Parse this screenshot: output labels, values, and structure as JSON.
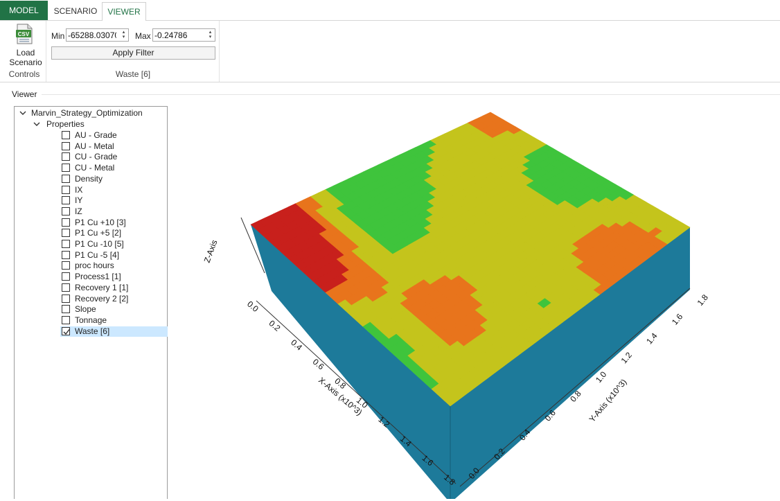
{
  "tabs": [
    {
      "label": "MODEL"
    },
    {
      "label": "SCENARIO"
    },
    {
      "label": "VIEWER"
    }
  ],
  "ribbon": {
    "controls_group": {
      "caption": "Controls",
      "load_button_label": "Load\nScenario",
      "icon": "csv-file-icon"
    },
    "filter_group": {
      "caption": "Waste [6]",
      "min_label": "Min",
      "min_value": "-65288.03070",
      "max_label": "Max",
      "max_value": "-0.24786",
      "apply_label": "Apply Filter"
    }
  },
  "viewer": {
    "label": "Viewer",
    "tree": {
      "root": "Marvin_Strategy_Optimization",
      "group": "Properties",
      "items": [
        {
          "label": "AU - Grade",
          "checked": false
        },
        {
          "label": "AU - Metal",
          "checked": false
        },
        {
          "label": "CU - Grade",
          "checked": false
        },
        {
          "label": "CU - Metal",
          "checked": false
        },
        {
          "label": "Density",
          "checked": false
        },
        {
          "label": "IX",
          "checked": false
        },
        {
          "label": "IY",
          "checked": false
        },
        {
          "label": "IZ",
          "checked": false
        },
        {
          "label": "P1 Cu +10 [3]",
          "checked": false
        },
        {
          "label": "P1 Cu +5 [2]",
          "checked": false
        },
        {
          "label": "P1 Cu -10 [5]",
          "checked": false
        },
        {
          "label": "P1 Cu -5 [4]",
          "checked": false
        },
        {
          "label": "proc hours",
          "checked": false
        },
        {
          "label": "Process1 [1]",
          "checked": false
        },
        {
          "label": "Recovery 1 [1]",
          "checked": false
        },
        {
          "label": "Recovery 2 [2]",
          "checked": false
        },
        {
          "label": "Slope",
          "checked": false
        },
        {
          "label": "Tonnage",
          "checked": false
        },
        {
          "label": "Waste [6]",
          "checked": true
        }
      ]
    },
    "plot": {
      "z_axis_label": "Z-Axis",
      "x_axis_label": "X-Axis (x10^3)",
      "y_axis_label": "Y-Axis (x10^3)",
      "x_ticks": [
        "0.0",
        "0.2",
        "0.4",
        "0.6",
        "0.8",
        "1.0",
        "1.2",
        "1.4",
        "1.6",
        "1.8"
      ],
      "y_ticks": [
        "0.0",
        "0.2",
        "0.4",
        "0.6",
        "0.8",
        "1.0",
        "1.2",
        "1.4",
        "1.6",
        "1.8"
      ],
      "colors": {
        "side": "#1d7a9a",
        "red": "#c8201c",
        "orange": "#e8741c",
        "yellow": "#c4c41c",
        "green": "#3fc43c",
        "cyan": "#3ab6c8"
      }
    }
  }
}
